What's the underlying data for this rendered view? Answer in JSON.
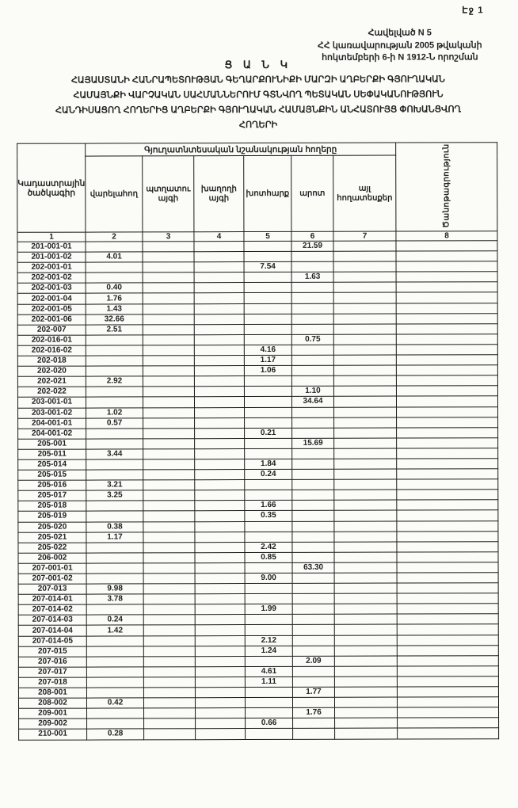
{
  "page": {
    "number_label": "Էջ 1"
  },
  "appendix": {
    "lines": [
      "Հավելված N 5",
      "ՀՀ կառավարության 2005 թվականի",
      "հոկտեմբերի 6-ի N 1912-Ն որոշման"
    ]
  },
  "title": {
    "heading": "Ց Ա Ն Կ",
    "lines": [
      "ՀԱՅԱՍՏԱՆԻ ՀԱՆՐԱՊԵՏՈՒԹՅԱՆ ԳԵՂԱՐՔՈՒՆԻՔԻ ՄԱՐԶԻ ԱՂԲԵՐՔԻ ԳՅՈՒՂԱԿԱՆ",
      "ՀԱՄԱՅՆՔԻ ՎԱՐՉԱԿԱՆ ՍԱՀՄԱՆՆԵՐՈՒՄ ԳՏՆՎՈՂ ՊԵՏԱԿԱՆ ՍԵՓԱԿԱՆՈՒԹՅՈՒՆ",
      "ՀԱՆԴԻՍԱՑՈՂ ՀՈՂԵՐԻՑ ԱՂԲԵՐՔԻ ԳՅՈՒՂԱԿԱՆ ՀԱՄԱՅՆՔԻՆ ԱՆՀԱՏՈՒՅՑ ՓՈԽԱՆՑՎՈՂ",
      "ՀՈՂԵՐԻ"
    ]
  },
  "table": {
    "col1_header": "Կադաստրային ծածկագիր",
    "group_header": "Գյուղատնտեսական նշանակության հողերը",
    "col_headers": [
      "վարելահող",
      "պտղատու այգի",
      "խաղողի այգի",
      "խոտհարք",
      "արոտ",
      "այլ հողատեսքեր"
    ],
    "col8_header": "Ծանոթագրություն",
    "column_numbers": [
      "1",
      "2",
      "3",
      "4",
      "5",
      "6",
      "7",
      "8"
    ],
    "rows": [
      [
        "201-001-01",
        "",
        "",
        "",
        "",
        "21.59",
        "",
        ""
      ],
      [
        "201-001-02",
        "4.01",
        "",
        "",
        "",
        "",
        "",
        ""
      ],
      [
        "202-001-01",
        "",
        "",
        "",
        "7.54",
        "",
        "",
        ""
      ],
      [
        "202-001-02",
        "",
        "",
        "",
        "",
        "1.63",
        "",
        ""
      ],
      [
        "202-001-03",
        "0.40",
        "",
        "",
        "",
        "",
        "",
        ""
      ],
      [
        "202-001-04",
        "1.76",
        "",
        "",
        "",
        "",
        "",
        ""
      ],
      [
        "202-001-05",
        "1.43",
        "",
        "",
        "",
        "",
        "",
        ""
      ],
      [
        "202-001-06",
        "32.66",
        "",
        "",
        "",
        "",
        "",
        ""
      ],
      [
        "202-007",
        "2.51",
        "",
        "",
        "",
        "",
        "",
        ""
      ],
      [
        "202-016-01",
        "",
        "",
        "",
        "",
        "0.75",
        "",
        ""
      ],
      [
        "202-016-02",
        "",
        "",
        "",
        "4.16",
        "",
        "",
        ""
      ],
      [
        "202-018",
        "",
        "",
        "",
        "1.17",
        "",
        "",
        ""
      ],
      [
        "202-020",
        "",
        "",
        "",
        "1.06",
        "",
        "",
        ""
      ],
      [
        "202-021",
        "2.92",
        "",
        "",
        "",
        "",
        "",
        ""
      ],
      [
        "202-022",
        "",
        "",
        "",
        "",
        "1.10",
        "",
        ""
      ],
      [
        "203-001-01",
        "",
        "",
        "",
        "",
        "34.64",
        "",
        ""
      ],
      [
        "203-001-02",
        "1.02",
        "",
        "",
        "",
        "",
        "",
        ""
      ],
      [
        "204-001-01",
        "0.57",
        "",
        "",
        "",
        "",
        "",
        ""
      ],
      [
        "204-001-02",
        "",
        "",
        "",
        "0.21",
        "",
        "",
        ""
      ],
      [
        "205-001",
        "",
        "",
        "",
        "",
        "15.69",
        "",
        ""
      ],
      [
        "205-011",
        "3.44",
        "",
        "",
        "",
        "",
        "",
        ""
      ],
      [
        "205-014",
        "",
        "",
        "",
        "1.84",
        "",
        "",
        ""
      ],
      [
        "205-015",
        "",
        "",
        "",
        "0.24",
        "",
        "",
        ""
      ],
      [
        "205-016",
        "3.21",
        "",
        "",
        "",
        "",
        "",
        ""
      ],
      [
        "205-017",
        "3.25",
        "",
        "",
        "",
        "",
        "",
        ""
      ],
      [
        "205-018",
        "",
        "",
        "",
        "1.66",
        "",
        "",
        ""
      ],
      [
        "205-019",
        "",
        "",
        "",
        "0.35",
        "",
        "",
        ""
      ],
      [
        "205-020",
        "0.38",
        "",
        "",
        "",
        "",
        "",
        ""
      ],
      [
        "205-021",
        "1.17",
        "",
        "",
        "",
        "",
        "",
        ""
      ],
      [
        "205-022",
        "",
        "",
        "",
        "2.42",
        "",
        "",
        ""
      ],
      [
        "206-002",
        "",
        "",
        "",
        "0.85",
        "",
        "",
        ""
      ],
      [
        "207-001-01",
        "",
        "",
        "",
        "",
        "63.30",
        "",
        ""
      ],
      [
        "207-001-02",
        "",
        "",
        "",
        "9.00",
        "",
        "",
        ""
      ],
      [
        "207-013",
        "9.98",
        "",
        "",
        "",
        "",
        "",
        ""
      ],
      [
        "207-014-01",
        "3.78",
        "",
        "",
        "",
        "",
        "",
        ""
      ],
      [
        "207-014-02",
        "",
        "",
        "",
        "1.99",
        "",
        "",
        ""
      ],
      [
        "207-014-03",
        "0.24",
        "",
        "",
        "",
        "",
        "",
        ""
      ],
      [
        "207-014-04",
        "1.42",
        "",
        "",
        "",
        "",
        "",
        ""
      ],
      [
        "207-014-05",
        "",
        "",
        "",
        "2.12",
        "",
        "",
        ""
      ],
      [
        "207-015",
        "",
        "",
        "",
        "1.24",
        "",
        "",
        ""
      ],
      [
        "207-016",
        "",
        "",
        "",
        "",
        "2.09",
        "",
        ""
      ],
      [
        "207-017",
        "",
        "",
        "",
        "4.61",
        "",
        "",
        ""
      ],
      [
        "207-018",
        "",
        "",
        "",
        "1.11",
        "",
        "",
        ""
      ],
      [
        "208-001",
        "",
        "",
        "",
        "",
        "1.77",
        "",
        ""
      ],
      [
        "208-002",
        "0.42",
        "",
        "",
        "",
        "",
        "",
        ""
      ],
      [
        "209-001",
        "",
        "",
        "",
        "",
        "1.76",
        "",
        ""
      ],
      [
        "209-002",
        "",
        "",
        "",
        "0.66",
        "",
        "",
        ""
      ],
      [
        "210-001",
        "0.28",
        "",
        "",
        "",
        "",
        "",
        ""
      ]
    ]
  }
}
